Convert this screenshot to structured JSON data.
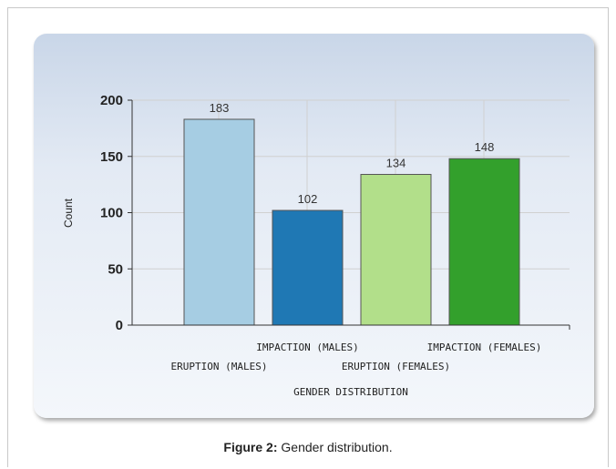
{
  "chart_data": {
    "type": "bar",
    "categories": [
      "ERUPTION (MALES)",
      "IMPACTION (MALES)",
      "ERUPTION (FEMALES)",
      "IMPACTION (FEMALES)"
    ],
    "values": [
      183,
      102,
      134,
      148
    ],
    "colors": [
      "#a6cde3",
      "#1f78b4",
      "#b2df8a",
      "#33a02c"
    ],
    "xlabel": "GENDER DISTRIBUTION",
    "ylabel": "Count",
    "ylim": [
      0,
      200
    ],
    "yticks": [
      "0",
      "50",
      "100",
      "150",
      "200"
    ],
    "grid": true,
    "legend": "none"
  },
  "caption": {
    "label": "Figure 2:",
    "text": " Gender distribution."
  }
}
